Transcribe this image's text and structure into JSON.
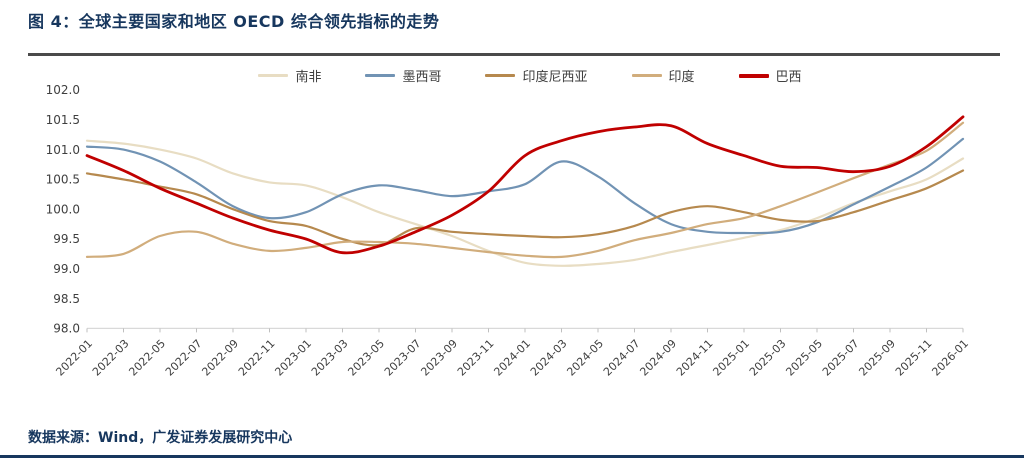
{
  "header": {
    "title": "图 4：全球主要国家和地区 OECD 综合领先指标的走势"
  },
  "footer": {
    "source": "数据来源：Wind，广发证券发展研究中心"
  },
  "colors": {
    "title_navy": "#17375e",
    "divider_dark": "#4a4a4a",
    "axis_text": "#3f3f3f",
    "axis_line": "#d9d9d9"
  },
  "chart_data": {
    "type": "line",
    "title": "全球主要国家和地区 OECD 综合领先指标的走势",
    "xlabel": "",
    "ylabel": "",
    "ylim": [
      98.0,
      102.0
    ],
    "ytick_step": 0.5,
    "y_tick_labels": [
      "102.0",
      "101.5",
      "101.0",
      "100.5",
      "100.0",
      "99.5",
      "99.0",
      "98.5",
      "98.0"
    ],
    "grid": false,
    "legend_position": "top",
    "x": [
      "2022-01",
      "2022-03",
      "2022-05",
      "2022-07",
      "2022-09",
      "2022-11",
      "2023-01",
      "2023-03",
      "2023-05",
      "2023-07",
      "2023-09",
      "2023-11",
      "2024-01",
      "2024-03",
      "2024-05",
      "2024-07",
      "2024-09",
      "2024-11",
      "2025-01",
      "2025-03",
      "2025-05",
      "2025-07",
      "2025-09",
      "2025-11",
      "2026-01"
    ],
    "series": [
      {
        "key": "south-africa",
        "name": "南非",
        "color": "#e8ddc3",
        "emphasis": false,
        "values": [
          101.15,
          101.1,
          101.0,
          100.85,
          100.6,
          100.45,
          100.4,
          100.2,
          99.95,
          99.75,
          99.55,
          99.3,
          99.1,
          99.05,
          99.08,
          99.15,
          99.28,
          99.4,
          99.52,
          99.65,
          99.85,
          100.1,
          100.3,
          100.5,
          100.85
        ]
      },
      {
        "key": "mexico",
        "name": "墨西哥",
        "color": "#7193b4",
        "emphasis": false,
        "values": [
          101.05,
          101.0,
          100.8,
          100.45,
          100.05,
          99.85,
          99.95,
          100.25,
          100.4,
          100.32,
          100.22,
          100.3,
          100.42,
          100.8,
          100.55,
          100.1,
          99.75,
          99.62,
          99.6,
          99.62,
          99.78,
          100.08,
          100.38,
          100.7,
          101.18
        ]
      },
      {
        "key": "indonesia",
        "name": "印度尼西亚",
        "color": "#b6894e",
        "emphasis": false,
        "values": [
          100.6,
          100.5,
          100.38,
          100.25,
          100.0,
          99.8,
          99.72,
          99.5,
          99.4,
          99.68,
          99.62,
          99.58,
          99.55,
          99.53,
          99.58,
          99.72,
          99.95,
          100.05,
          99.95,
          99.82,
          99.8,
          99.95,
          100.15,
          100.35,
          100.65
        ]
      },
      {
        "key": "india",
        "name": "印度",
        "color": "#d1ad7c",
        "emphasis": false,
        "values": [
          99.2,
          99.25,
          99.55,
          99.62,
          99.42,
          99.3,
          99.35,
          99.45,
          99.45,
          99.42,
          99.35,
          99.28,
          99.22,
          99.2,
          99.3,
          99.48,
          99.6,
          99.75,
          99.85,
          100.05,
          100.28,
          100.52,
          100.75,
          100.98,
          101.45
        ]
      },
      {
        "key": "brazil",
        "name": "巴西",
        "color": "#c00000",
        "emphasis": true,
        "values": [
          100.9,
          100.65,
          100.35,
          100.1,
          99.85,
          99.65,
          99.5,
          99.27,
          99.38,
          99.62,
          99.9,
          100.3,
          100.9,
          101.15,
          101.3,
          101.38,
          101.4,
          101.1,
          100.9,
          100.72,
          100.7,
          100.63,
          100.72,
          101.05,
          101.55
        ]
      }
    ]
  }
}
